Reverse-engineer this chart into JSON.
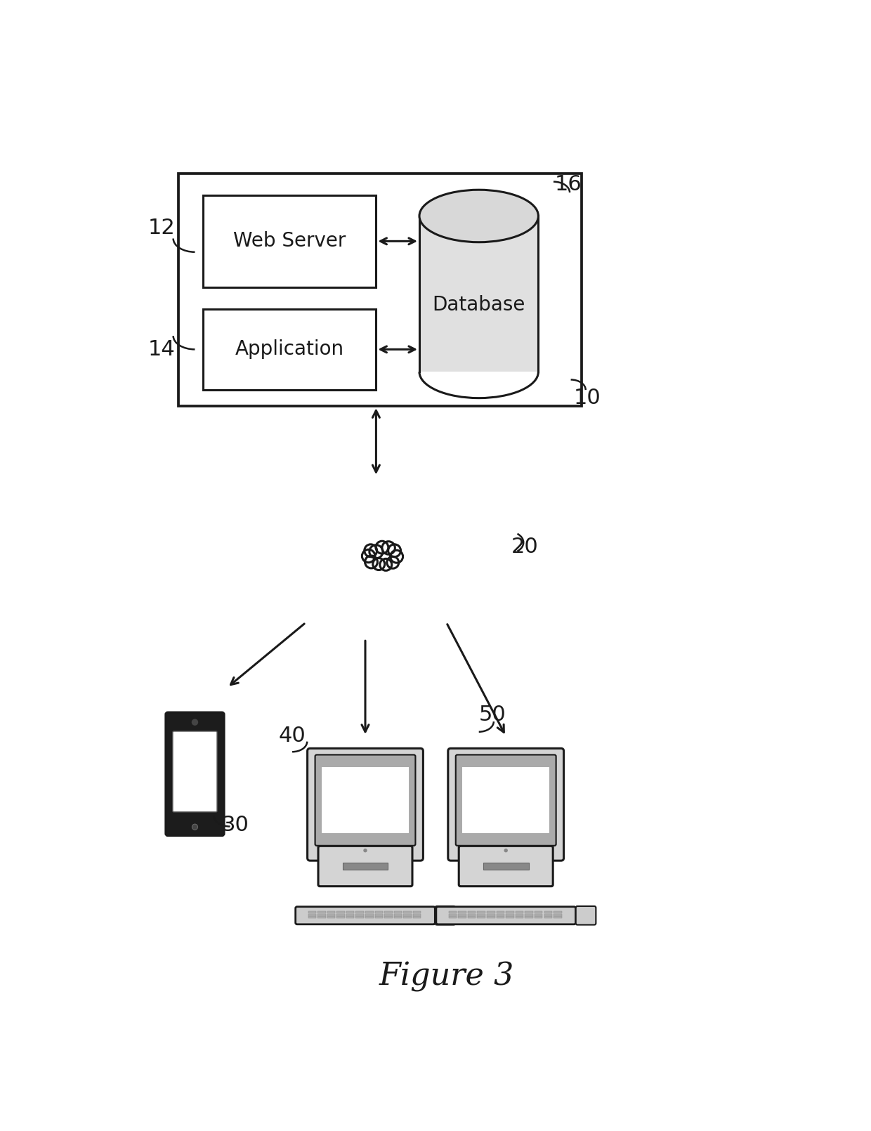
{
  "bg_color": "#ffffff",
  "line_color": "#1a1a1a",
  "figure_label": "Figure 3",
  "cloud_circles": [
    [
      0.0,
      0.055,
      0.062
    ],
    [
      0.055,
      0.095,
      0.058
    ],
    [
      0.115,
      0.09,
      0.06
    ],
    [
      0.17,
      0.065,
      0.058
    ],
    [
      0.19,
      0.01,
      0.058
    ],
    [
      0.155,
      -0.045,
      0.055
    ],
    [
      0.09,
      -0.065,
      0.055
    ],
    [
      0.025,
      -0.06,
      0.055
    ],
    [
      -0.045,
      -0.04,
      0.058
    ],
    [
      -0.07,
      0.015,
      0.06
    ],
    [
      -0.05,
      0.065,
      0.058
    ]
  ]
}
